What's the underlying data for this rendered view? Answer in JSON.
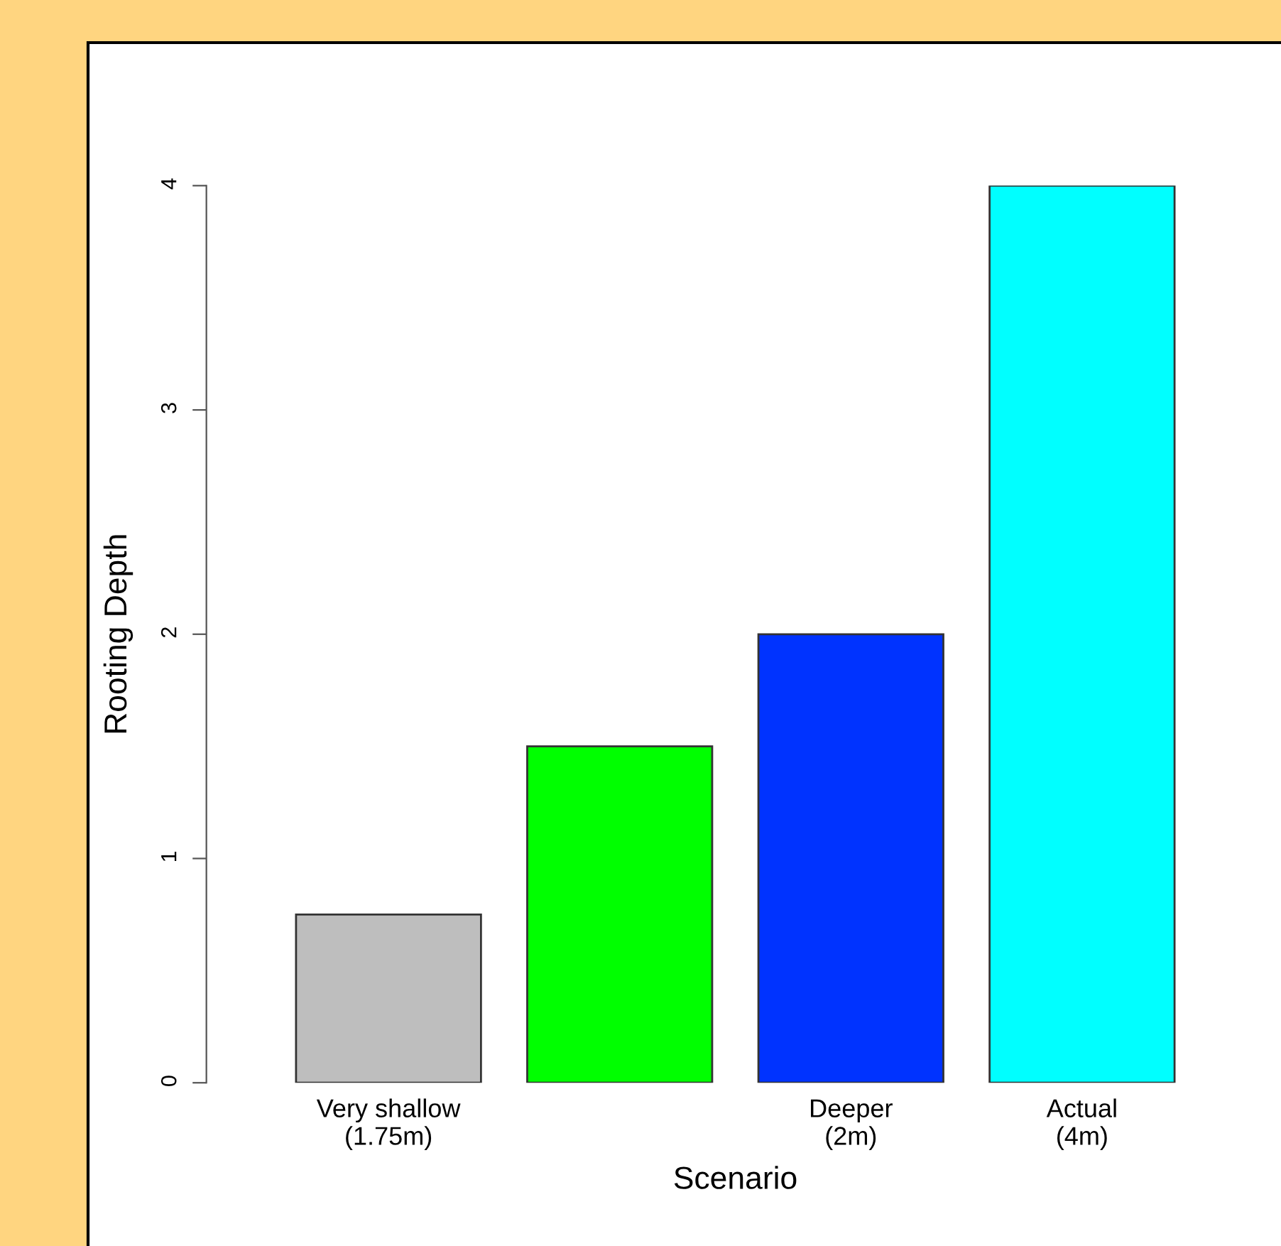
{
  "chart_data": {
    "type": "bar",
    "xlabel": "Scenario",
    "ylabel": "Rooting Depth",
    "categories": [
      "Very shallow\n(1.75m)",
      null,
      "Deeper\n(2m)",
      "Actual\n(4m)"
    ],
    "values": [
      0.75,
      1.5,
      2,
      4
    ],
    "colors": [
      "#bebebe",
      "#00ff00",
      "#0033ff",
      "#00ffff"
    ],
    "ylim": [
      0,
      4
    ],
    "yticks": [
      0,
      1,
      2,
      3,
      4
    ]
  }
}
